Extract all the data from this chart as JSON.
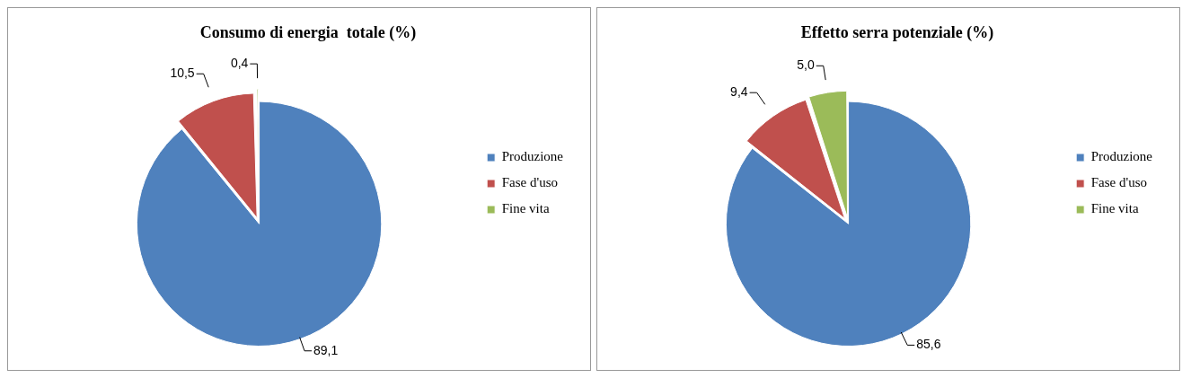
{
  "chart_data": [
    {
      "type": "pie",
      "title": "Consumo di energia  totale (%)",
      "categories": [
        "Produzione",
        "Fase d'uso",
        "Fine vita"
      ],
      "values": [
        89.1,
        10.5,
        0.4
      ],
      "value_labels": [
        "89,1",
        "10,5",
        "0,4"
      ],
      "colors": [
        "#4f81bd",
        "#c0504d",
        "#9bbb59"
      ],
      "legend": "right"
    },
    {
      "type": "pie",
      "title": "Effetto serra potenziale (%)",
      "categories": [
        "Produzione",
        "Fase d'uso",
        "Fine vita"
      ],
      "values": [
        85.6,
        9.4,
        5.0
      ],
      "value_labels": [
        "85,6",
        "9,4",
        "5,0"
      ],
      "colors": [
        "#4f81bd",
        "#c0504d",
        "#9bbb59"
      ],
      "legend": "right"
    }
  ]
}
